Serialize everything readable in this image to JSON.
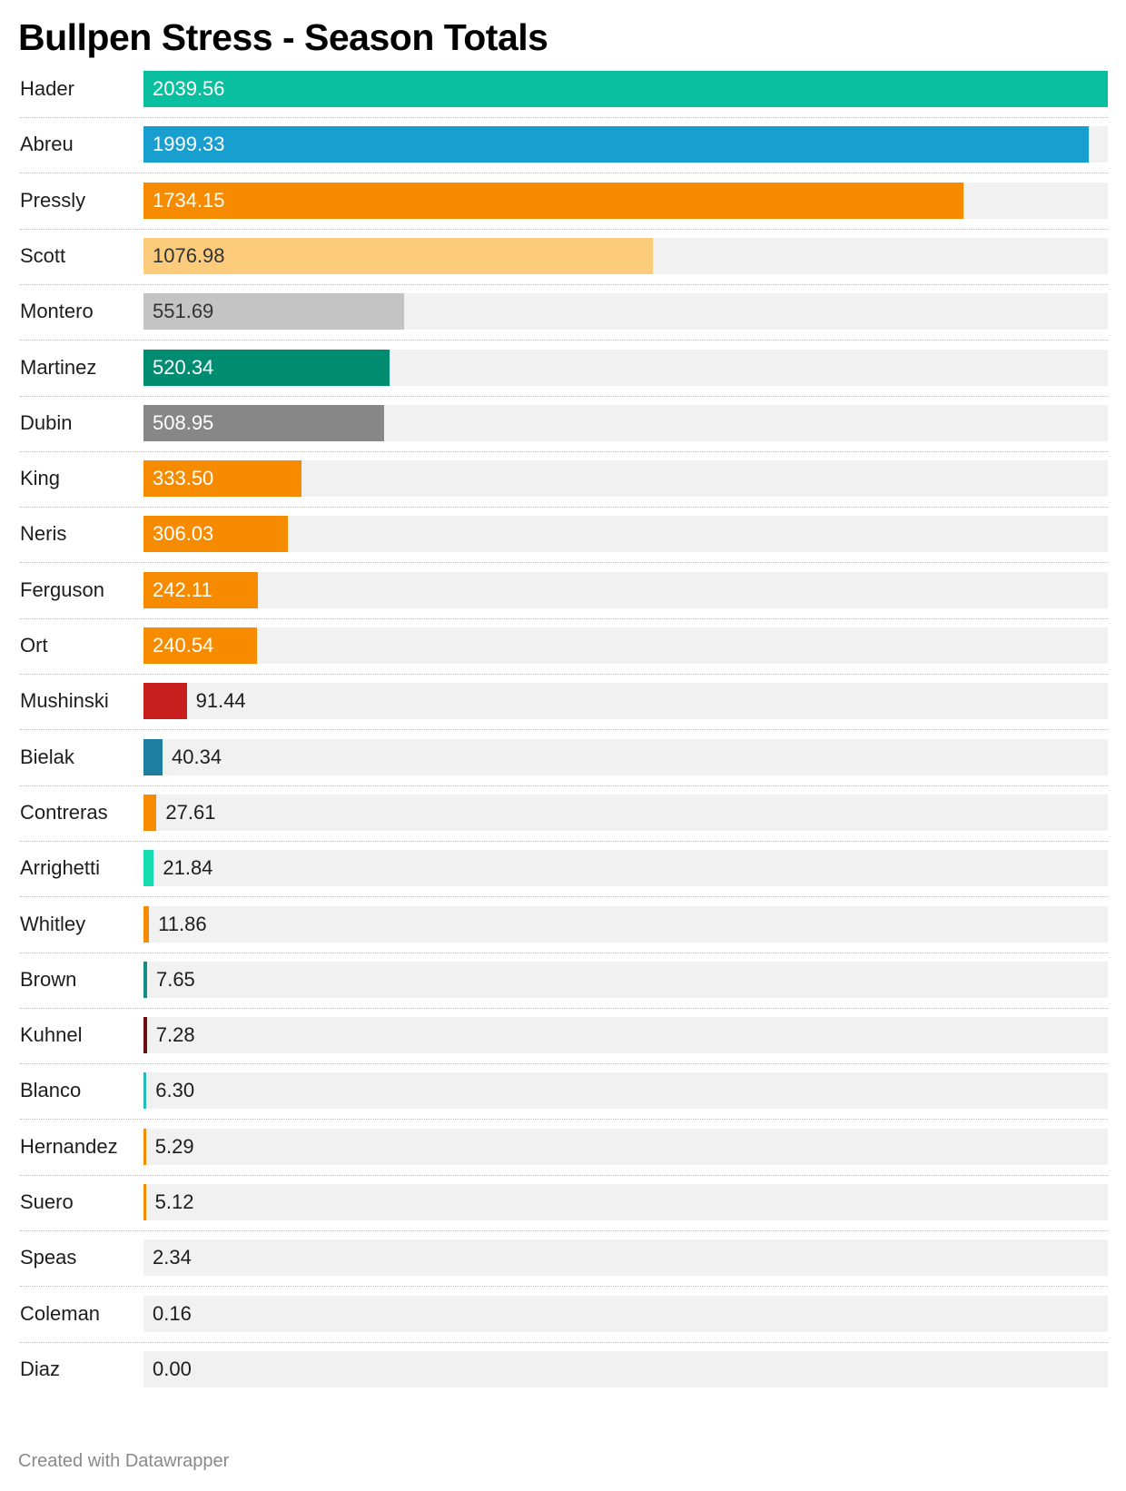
{
  "title": "Bullpen Stress - Season Totals",
  "footer": "Created with Datawrapper",
  "chart_data": {
    "type": "bar",
    "orientation": "horizontal",
    "title": "Bullpen Stress - Season Totals",
    "xlim": [
      0,
      2039.56
    ],
    "grid": false,
    "categories": [
      "Hader",
      "Abreu",
      "Pressly",
      "Scott",
      "Montero",
      "Martinez",
      "Dubin",
      "King",
      "Neris",
      "Ferguson",
      "Ort",
      "Mushinski",
      "Bielak",
      "Contreras",
      "Arrighetti",
      "Whitley",
      "Brown",
      "Kuhnel",
      "Blanco",
      "Hernandez",
      "Suero",
      "Speas",
      "Coleman",
      "Diaz"
    ],
    "values": [
      2039.56,
      1999.33,
      1734.15,
      1076.98,
      551.69,
      520.34,
      508.95,
      333.5,
      306.03,
      242.11,
      240.54,
      91.44,
      40.34,
      27.61,
      21.84,
      11.86,
      7.65,
      7.28,
      6.3,
      5.29,
      5.12,
      2.34,
      0.16,
      0.0
    ],
    "labels": [
      "2039.56",
      "1999.33",
      "1734.15",
      "1076.98",
      "551.69",
      "520.34",
      "508.95",
      "333.50",
      "306.03",
      "242.11",
      "240.54",
      "91.44",
      "40.34",
      "27.61",
      "21.84",
      "11.86",
      "7.65",
      "7.28",
      "6.30",
      "5.29",
      "5.12",
      "2.34",
      "0.16",
      "0.00"
    ],
    "colors": [
      "#0abf9f",
      "#189ecf",
      "#f68b00",
      "#fccb7c",
      "#c4c4c4",
      "#008c70",
      "#878787",
      "#f68b00",
      "#f68b00",
      "#f68b00",
      "#f68b00",
      "#c81e1e",
      "#1f7fa0",
      "#f68b00",
      "#17dbb1",
      "#f68b00",
      "#138c87",
      "#6b0f0f",
      "#20bdbd",
      "#f68b00",
      "#f68b00",
      "#f68b00",
      "#f68b00",
      "#f68b00"
    ],
    "label_colors": [
      "#ffffff",
      "#ffffff",
      "#ffffff",
      "#333333",
      "#333333",
      "#ffffff",
      "#ffffff",
      "#ffffff",
      "#ffffff",
      "#ffffff",
      "#ffffff",
      "#1d1d1d",
      "#1d1d1d",
      "#1d1d1d",
      "#1d1d1d",
      "#1d1d1d",
      "#1d1d1d",
      "#1d1d1d",
      "#1d1d1d",
      "#1d1d1d",
      "#1d1d1d",
      "#1d1d1d",
      "#1d1d1d",
      "#1d1d1d"
    ]
  }
}
